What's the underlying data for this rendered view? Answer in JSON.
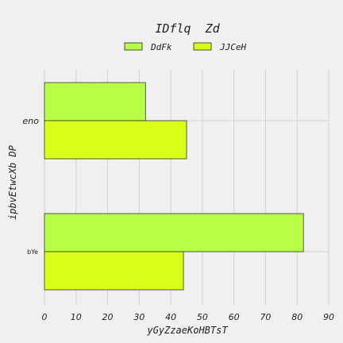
{
  "chart_data": {
    "type": "bar",
    "orientation": "horizontal",
    "title": "IDflq  Zd",
    "xlabel": "yGyZzaeKoHBTsT",
    "ylabel": "ipbvEtwcXb DP",
    "categories": [
      "eno",
      "bYe"
    ],
    "series": [
      {
        "name": "DdFk",
        "values": [
          32,
          82
        ],
        "color": "#b8ff48"
      },
      {
        "name": "JJCeH",
        "values": [
          45,
          44
        ],
        "color": "#dcff1a"
      }
    ],
    "xlim": [
      0,
      90
    ],
    "xticks": [
      0,
      10,
      20,
      30,
      40,
      50,
      60,
      70,
      80,
      90
    ],
    "grid": true,
    "legend_position": "top-center"
  }
}
